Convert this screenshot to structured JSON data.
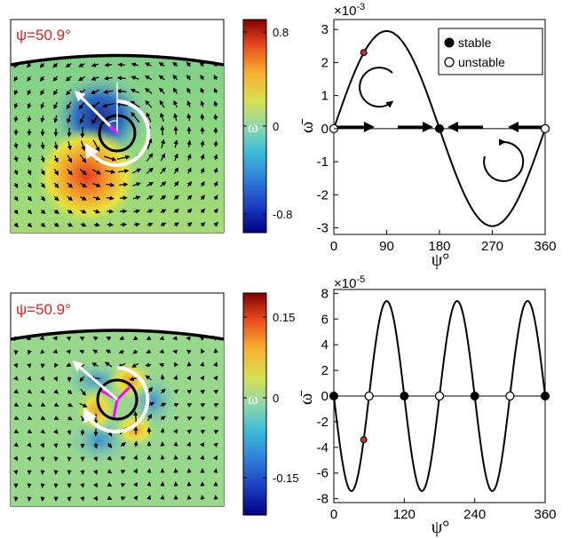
{
  "colors": {
    "psi_label": "#e0201c",
    "highlight_point": "#c0302a",
    "curve": "#000000",
    "arrow": "#ffffff",
    "marker": "#ff00ff"
  },
  "panels": [
    {
      "psi_label": "ψ=50.9°",
      "colorbar": {
        "label": "ω",
        "ticks": [
          "0.8",
          "0",
          "-0.8"
        ]
      }
    },
    {
      "psi_label": "ψ=50.9°",
      "colorbar": {
        "label": "ω",
        "ticks": [
          "0.15",
          "0",
          "-0.15"
        ]
      }
    }
  ],
  "chart_data": [
    {
      "type": "line",
      "xlabel": "ψ°",
      "ylabel": "ω̄",
      "y_exponent": "×10",
      "y_exponent_power": "-3",
      "xlim": [
        0,
        360
      ],
      "ylim": [
        -3.2,
        3.3
      ],
      "xticks": [
        0,
        90,
        180,
        270,
        360
      ],
      "xtick_labels": [
        "0",
        "90",
        "180",
        "270",
        "360"
      ],
      "yticks": [
        3,
        2,
        1,
        0,
        -1,
        -2,
        -3
      ],
      "ytick_labels": [
        "3",
        "2",
        "1",
        "0",
        "-1",
        "-2",
        "-3"
      ],
      "series": [
        {
          "function": "sin",
          "amplitude": 2.95,
          "harmonic": 1
        }
      ],
      "stable_points": [
        [
          180,
          0
        ]
      ],
      "unstable_points": [
        [
          0,
          0
        ],
        [
          360,
          0
        ]
      ],
      "highlight_point": [
        50.9,
        2.3
      ],
      "legend": {
        "entries": [
          "stable",
          "unstable"
        ],
        "placement": "top-right"
      }
    },
    {
      "type": "line",
      "xlabel": "ψ°",
      "ylabel": "ω̄",
      "y_exponent": "×10",
      "y_exponent_power": "-5",
      "xlim": [
        0,
        360
      ],
      "ylim": [
        -8.3,
        8.3
      ],
      "xticks": [
        0,
        120,
        240,
        360
      ],
      "xtick_labels": [
        "0",
        "120",
        "240",
        "360"
      ],
      "yticks": [
        8,
        6,
        4,
        2,
        0,
        -2,
        -4,
        -6,
        -8
      ],
      "ytick_labels": [
        "8",
        "6",
        "4",
        "2",
        "0",
        "-2",
        "-4",
        "-6",
        "-8"
      ],
      "series": [
        {
          "function": "-sin",
          "amplitude": 7.4,
          "harmonic": 3
        }
      ],
      "stable_points": [
        [
          0,
          0
        ],
        [
          120,
          0
        ],
        [
          240,
          0
        ],
        [
          360,
          0
        ]
      ],
      "unstable_points": [
        [
          60,
          0
        ],
        [
          180,
          0
        ],
        [
          300,
          0
        ]
      ],
      "highlight_point": [
        50.9,
        -3.4
      ]
    }
  ]
}
